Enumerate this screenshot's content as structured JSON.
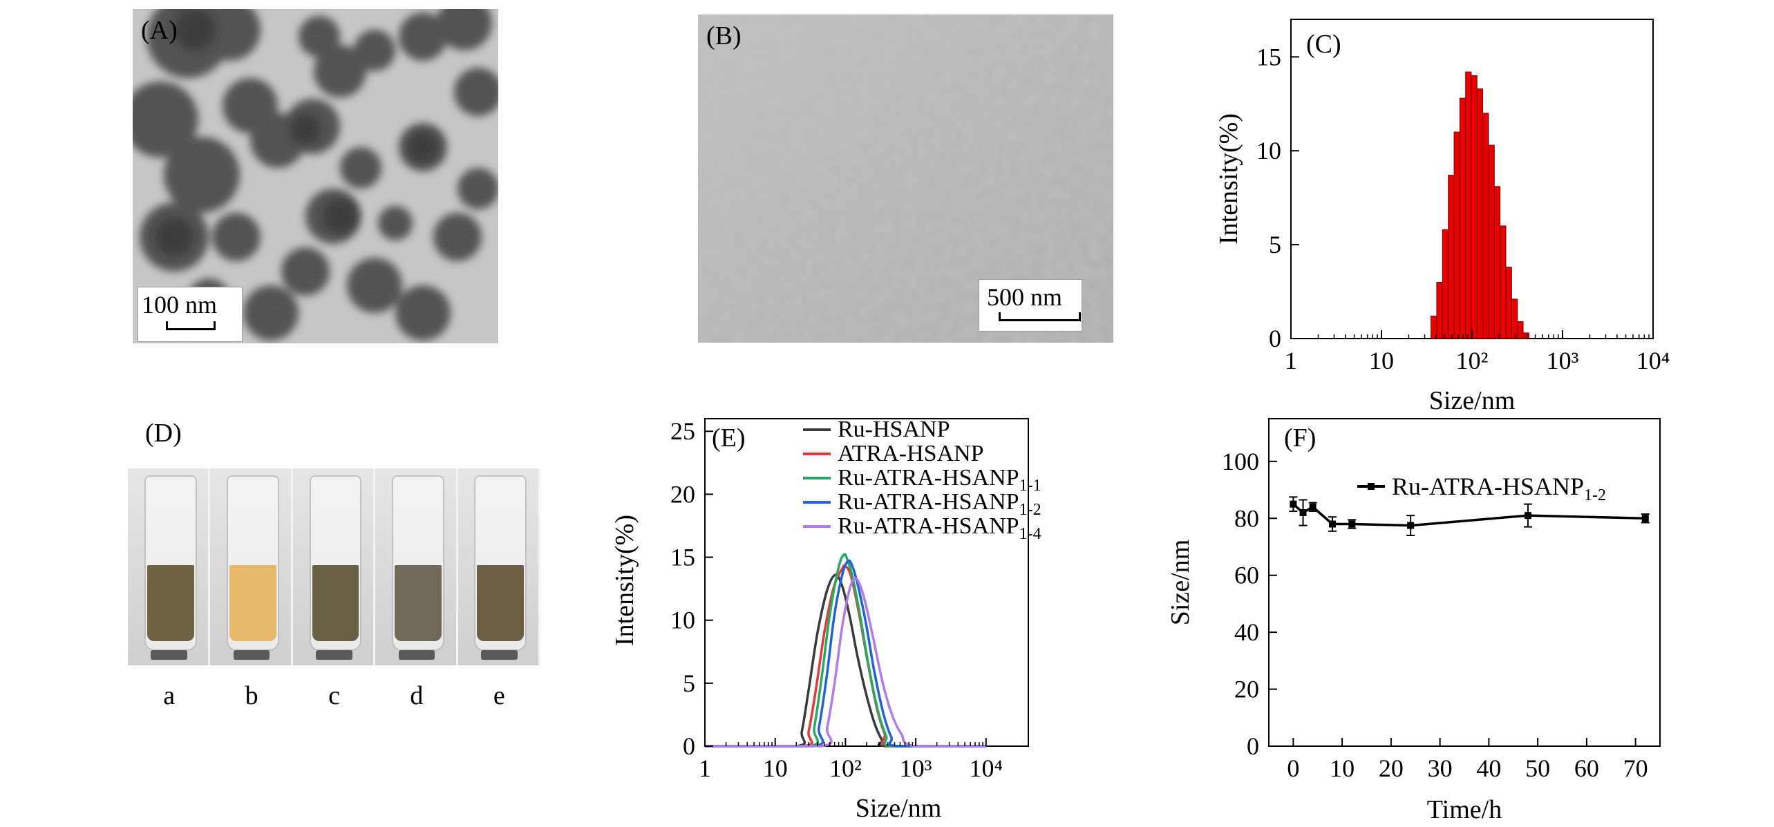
{
  "panels": {
    "A": {
      "label": "(A)",
      "scalebar": "100 nm"
    },
    "B": {
      "label": "(B)",
      "scalebar": "500 nm"
    },
    "D": {
      "label": "(D)",
      "vials": [
        {
          "label": "a",
          "color": "#6f6343"
        },
        {
          "label": "b",
          "color": "#e9b96a"
        },
        {
          "label": "c",
          "color": "#6a6046"
        },
        {
          "label": "d",
          "color": "#6f6b58"
        },
        {
          "label": "e",
          "color": "#6c5f43"
        }
      ]
    }
  },
  "chart_data": [
    {
      "id": "C",
      "panel_label": "(C)",
      "type": "bar",
      "xscale": "log",
      "xlim": [
        1,
        10000
      ],
      "ylim": [
        0,
        17
      ],
      "xlabel": "Size/nm",
      "ylabel": "Intensity(%)",
      "xticks": [
        "1",
        "10",
        "10²",
        "10³",
        "10⁴"
      ],
      "yticks": [
        "0",
        "5",
        "10",
        "15"
      ],
      "bar_color": "#e60000",
      "x": [
        37.8,
        43.8,
        50.7,
        58.8,
        68.1,
        78.8,
        91.3,
        105.7,
        122.4,
        141.8,
        164.2,
        190.1,
        220.2,
        255.0,
        295.3,
        342.0,
        396.1,
        458.7,
        531.2
      ],
      "values": [
        1.2,
        3.0,
        5.8,
        8.7,
        11.0,
        12.8,
        14.2,
        14.0,
        13.3,
        12.0,
        10.3,
        8.1,
        6.0,
        3.8,
        2.1,
        0.9,
        0.3,
        0.0,
        0.0
      ]
    },
    {
      "id": "E",
      "panel_label": "(E)",
      "type": "line",
      "xscale": "log",
      "xlim": [
        1,
        40000
      ],
      "ylim": [
        0,
        26
      ],
      "xlabel": "Size/nm",
      "ylabel": "Intensity(%)",
      "xticks": [
        "1",
        "10",
        "10²",
        "10³",
        "10⁴"
      ],
      "yticks": [
        "0",
        "5",
        "10",
        "15",
        "20",
        "25"
      ],
      "series": [
        {
          "name": "Ru-HSANP",
          "color": "#3a3a3a",
          "x": [
            1,
            20,
            24,
            30,
            40,
            55,
            72,
            90,
            115,
            150,
            200,
            260,
            330,
            400,
            10000
          ],
          "values": [
            0,
            0,
            1.2,
            4.5,
            9.0,
            12.4,
            13.6,
            12.7,
            10.3,
            7.0,
            4.0,
            1.8,
            0.5,
            0,
            0
          ]
        },
        {
          "name": "ATRA-HSANP",
          "color": "#e63a3a",
          "x": [
            1,
            25,
            30,
            38,
            50,
            68,
            90,
            100,
            120,
            155,
            210,
            280,
            360,
            450,
            10000
          ],
          "values": [
            0,
            0,
            1.2,
            4.5,
            9.0,
            12.6,
            14.1,
            14.3,
            13.5,
            10.6,
            6.5,
            3.0,
            1.0,
            0,
            0
          ]
        },
        {
          "name": "Ru-ATRA-HSANP",
          "sub": "1-1",
          "color": "#2aa862",
          "x": [
            1,
            30,
            36,
            46,
            60,
            80,
            95,
            105,
            125,
            160,
            215,
            290,
            380,
            480,
            10000
          ],
          "values": [
            0,
            0,
            1.5,
            5.5,
            10.5,
            14.2,
            15.2,
            14.9,
            13.5,
            10.5,
            6.3,
            2.8,
            0.8,
            0,
            0
          ]
        },
        {
          "name": "Ru-ATRA-HSANP",
          "sub": "1-2",
          "color": "#1f63d6",
          "x": [
            1,
            35,
            42,
            54,
            70,
            92,
            110,
            125,
            150,
            195,
            260,
            350,
            450,
            560,
            10000
          ],
          "values": [
            0,
            0,
            1.5,
            5.5,
            10.5,
            13.8,
            14.7,
            14.3,
            12.8,
            9.8,
            5.8,
            2.5,
            0.7,
            0,
            0
          ]
        },
        {
          "name": "Ru-ATRA-HSANP",
          "sub": "1-4",
          "color": "#b07ce8",
          "x": [
            1,
            45,
            55,
            70,
            90,
            115,
            135,
            155,
            190,
            250,
            340,
            460,
            620,
            950,
            10000
          ],
          "values": [
            0,
            0,
            1.5,
            5.0,
            9.5,
            12.5,
            13.3,
            13.0,
            11.5,
            8.5,
            5.0,
            2.5,
            1.0,
            0,
            0
          ]
        }
      ]
    },
    {
      "id": "F",
      "panel_label": "(F)",
      "type": "line",
      "xlim": [
        -5,
        75
      ],
      "ylim": [
        0,
        115
      ],
      "xlabel": "Time/h",
      "ylabel": "Size/nm",
      "xticks": [
        "0",
        "10",
        "20",
        "30",
        "40",
        "50",
        "60",
        "70"
      ],
      "yticks": [
        "0",
        "20",
        "40",
        "60",
        "80",
        "100"
      ],
      "legend": "top",
      "series": [
        {
          "name": "Ru-ATRA-HSANP",
          "sub": "1-2",
          "color": "#000000",
          "x": [
            0,
            2,
            4,
            8,
            12,
            24,
            48,
            72
          ],
          "values": [
            85,
            82,
            84,
            78,
            78,
            77.5,
            81,
            80
          ],
          "errors": [
            2.5,
            4.5,
            1.5,
            2.5,
            1.5,
            3.5,
            4.0,
            1.5
          ]
        }
      ]
    }
  ]
}
